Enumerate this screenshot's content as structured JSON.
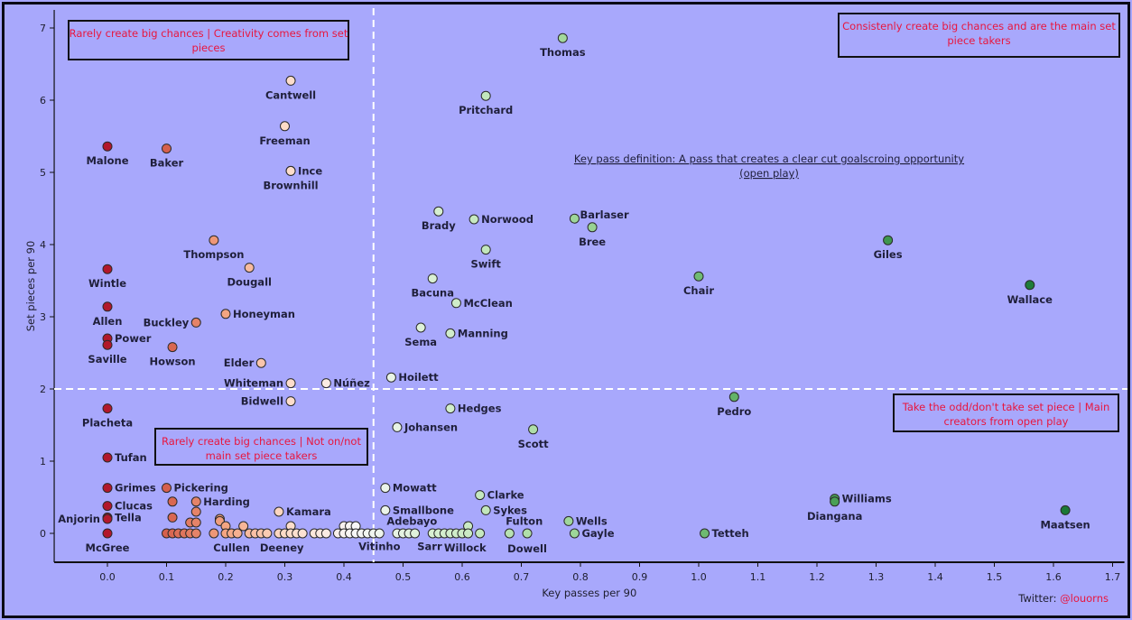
{
  "chart_data": {
    "type": "scatter",
    "title": "",
    "xlabel": "Key passes per 90",
    "ylabel": "Set pieces per 90",
    "xlim": [
      -0.09,
      1.72
    ],
    "ylim": [
      -0.4,
      7.25
    ],
    "xticks": [
      "0.0",
      "0.1",
      "0.2",
      "0.3",
      "0.4",
      "0.5",
      "0.6",
      "0.7",
      "0.8",
      "0.9",
      "1.0",
      "1.1",
      "1.2",
      "1.3",
      "1.4",
      "1.5",
      "1.6",
      "1.7"
    ],
    "yticks": [
      "0",
      "1",
      "2",
      "3",
      "4",
      "5",
      "6",
      "7"
    ],
    "grid": false,
    "reference_lines": {
      "x": 0.45,
      "y": 2.0
    },
    "color_scale": {
      "low": "#b2182b",
      "mid": "#f7f7f7",
      "high": "#1b7837",
      "variable": "Key passes per 90"
    },
    "annotations": {
      "top_left": "Rarely create big chances | Creativity comes from set pieces",
      "top_right": "Consistenly create big chances and are the main set piece takers",
      "bottom_left": "Rarely create big chances | Not on/not main set piece takers",
      "bottom_right": "Take the odd/don't take set piece | Main creators from open play",
      "definition_line1": "Key pass definition: A pass that creates a clear cut goalscroing opportunity",
      "definition_line2": "(open play)"
    },
    "credit": {
      "prefix": "Twitter: ",
      "handle": "@louorns"
    },
    "points": [
      {
        "name": "Thomas",
        "x": 0.77,
        "y": 6.86,
        "label_pos": "below"
      },
      {
        "name": "Cantwell",
        "x": 0.31,
        "y": 6.27,
        "label_pos": "below"
      },
      {
        "name": "Pritchard",
        "x": 0.64,
        "y": 6.06,
        "label_pos": "below"
      },
      {
        "name": "Freeman",
        "x": 0.3,
        "y": 5.64,
        "label_pos": "below"
      },
      {
        "name": "Malone",
        "x": 0.0,
        "y": 5.36,
        "label_pos": "below"
      },
      {
        "name": "Baker",
        "x": 0.1,
        "y": 5.33,
        "label_pos": "below"
      },
      {
        "name": "Ince",
        "x": 0.31,
        "y": 5.02,
        "label_pos": "right"
      },
      {
        "name": "Brownhill",
        "x": 0.31,
        "y": 5.02,
        "label_pos": "below"
      },
      {
        "name": "Brady",
        "x": 0.56,
        "y": 4.46,
        "label_pos": "below"
      },
      {
        "name": "Norwood",
        "x": 0.62,
        "y": 4.35,
        "label_pos": "right"
      },
      {
        "name": "Barlaser",
        "x": 0.79,
        "y": 4.36,
        "label_pos": "right-up"
      },
      {
        "name": "Bree",
        "x": 0.82,
        "y": 4.24,
        "label_pos": "below"
      },
      {
        "name": "Thompson",
        "x": 0.18,
        "y": 4.06,
        "label_pos": "below"
      },
      {
        "name": "Giles",
        "x": 1.32,
        "y": 4.06,
        "label_pos": "below"
      },
      {
        "name": "Swift",
        "x": 0.64,
        "y": 3.93,
        "label_pos": "below"
      },
      {
        "name": "Dougall",
        "x": 0.24,
        "y": 3.68,
        "label_pos": "below"
      },
      {
        "name": "Wintle",
        "x": 0.0,
        "y": 3.66,
        "label_pos": "below"
      },
      {
        "name": "Chair",
        "x": 1.0,
        "y": 3.56,
        "label_pos": "below"
      },
      {
        "name": "Bacuna",
        "x": 0.55,
        "y": 3.53,
        "label_pos": "below"
      },
      {
        "name": "Wallace",
        "x": 1.56,
        "y": 3.44,
        "label_pos": "below"
      },
      {
        "name": "McClean",
        "x": 0.59,
        "y": 3.19,
        "label_pos": "right"
      },
      {
        "name": "Allen",
        "x": 0.0,
        "y": 3.14,
        "label_pos": "below"
      },
      {
        "name": "Honeyman",
        "x": 0.2,
        "y": 3.04,
        "label_pos": "right"
      },
      {
        "name": "Buckley",
        "x": 0.15,
        "y": 2.92,
        "label_pos": "left"
      },
      {
        "name": "Sema",
        "x": 0.53,
        "y": 2.85,
        "label_pos": "below"
      },
      {
        "name": "Manning",
        "x": 0.58,
        "y": 2.77,
        "label_pos": "right"
      },
      {
        "name": "Power",
        "x": 0.0,
        "y": 2.7,
        "label_pos": "right"
      },
      {
        "name": "Saville",
        "x": 0.0,
        "y": 2.61,
        "label_pos": "below"
      },
      {
        "name": "Howson",
        "x": 0.11,
        "y": 2.58,
        "label_pos": "below"
      },
      {
        "name": "Elder",
        "x": 0.26,
        "y": 2.36,
        "label_pos": "left"
      },
      {
        "name": "Hoilett",
        "x": 0.48,
        "y": 2.16,
        "label_pos": "right"
      },
      {
        "name": "Whiteman",
        "x": 0.31,
        "y": 2.08,
        "label_pos": "left"
      },
      {
        "name": "Núñez",
        "x": 0.37,
        "y": 2.08,
        "label_pos": "right"
      },
      {
        "name": "Pedro",
        "x": 1.06,
        "y": 1.89,
        "label_pos": "below"
      },
      {
        "name": "Bidwell",
        "x": 0.31,
        "y": 1.83,
        "label_pos": "left"
      },
      {
        "name": "Hedges",
        "x": 0.58,
        "y": 1.73,
        "label_pos": "right"
      },
      {
        "name": "Placheta",
        "x": 0.0,
        "y": 1.73,
        "label_pos": "below"
      },
      {
        "name": "Johansen",
        "x": 0.49,
        "y": 1.47,
        "label_pos": "right"
      },
      {
        "name": "Scott",
        "x": 0.72,
        "y": 1.44,
        "label_pos": "below"
      },
      {
        "name": "Tufan",
        "x": 0.0,
        "y": 1.05,
        "label_pos": "right"
      },
      {
        "name": "Grimes",
        "x": 0.0,
        "y": 0.63,
        "label_pos": "right"
      },
      {
        "name": "Pickering",
        "x": 0.1,
        "y": 0.63,
        "label_pos": "right"
      },
      {
        "name": "Mowatt",
        "x": 0.47,
        "y": 0.63,
        "label_pos": "right"
      },
      {
        "name": "Clarke",
        "x": 0.63,
        "y": 0.53,
        "label_pos": "right"
      },
      {
        "name": "Williams",
        "x": 1.23,
        "y": 0.48,
        "label_pos": "right"
      },
      {
        "name": "Diangana",
        "x": 1.23,
        "y": 0.44,
        "label_pos": "below"
      },
      {
        "name": "Harding",
        "x": 0.15,
        "y": 0.44,
        "label_pos": "right"
      },
      {
        "name": "",
        "x": 0.11,
        "y": 0.44,
        "label_pos": "none"
      },
      {
        "name": "Clucas",
        "x": 0.0,
        "y": 0.38,
        "label_pos": "right"
      },
      {
        "name": "Smallbone",
        "x": 0.47,
        "y": 0.32,
        "label_pos": "right"
      },
      {
        "name": "Sykes",
        "x": 0.64,
        "y": 0.32,
        "label_pos": "right"
      },
      {
        "name": "Maatsen",
        "x": 1.62,
        "y": 0.32,
        "label_pos": "below"
      },
      {
        "name": "Kamara",
        "x": 0.29,
        "y": 0.3,
        "label_pos": "right"
      },
      {
        "name": "",
        "x": 0.15,
        "y": 0.3,
        "label_pos": "none"
      },
      {
        "name": "Tella",
        "x": 0.0,
        "y": 0.22,
        "label_pos": "right"
      },
      {
        "name": "Anjorin",
        "x": 0.0,
        "y": 0.2,
        "label_pos": "left"
      },
      {
        "name": "",
        "x": 0.11,
        "y": 0.22,
        "label_pos": "none"
      },
      {
        "name": "",
        "x": 0.19,
        "y": 0.2,
        "label_pos": "none"
      },
      {
        "name": "Wells",
        "x": 0.78,
        "y": 0.17,
        "label_pos": "right"
      },
      {
        "name": "",
        "x": 0.14,
        "y": 0.15,
        "label_pos": "none"
      },
      {
        "name": "",
        "x": 0.15,
        "y": 0.15,
        "label_pos": "none"
      },
      {
        "name": "",
        "x": 0.19,
        "y": 0.17,
        "label_pos": "none"
      },
      {
        "name": "",
        "x": 0.2,
        "y": 0.1,
        "label_pos": "none"
      },
      {
        "name": "",
        "x": 0.23,
        "y": 0.1,
        "label_pos": "none"
      },
      {
        "name": "",
        "x": 0.31,
        "y": 0.1,
        "label_pos": "none"
      },
      {
        "name": "",
        "x": 0.4,
        "y": 0.1,
        "label_pos": "none"
      },
      {
        "name": "",
        "x": 0.41,
        "y": 0.1,
        "label_pos": "none"
      },
      {
        "name": "",
        "x": 0.42,
        "y": 0.1,
        "label_pos": "none"
      },
      {
        "name": "",
        "x": 0.61,
        "y": 0.1,
        "label_pos": "none"
      },
      {
        "name": "McGree",
        "x": 0.0,
        "y": 0.0,
        "label_pos": "below"
      },
      {
        "name": "",
        "x": 0.1,
        "y": 0.0,
        "label_pos": "none"
      },
      {
        "name": "",
        "x": 0.11,
        "y": 0.0,
        "label_pos": "none"
      },
      {
        "name": "",
        "x": 0.12,
        "y": 0.0,
        "label_pos": "none"
      },
      {
        "name": "",
        "x": 0.13,
        "y": 0.0,
        "label_pos": "none"
      },
      {
        "name": "",
        "x": 0.14,
        "y": 0.0,
        "label_pos": "none"
      },
      {
        "name": "",
        "x": 0.15,
        "y": 0.0,
        "label_pos": "none"
      },
      {
        "name": "",
        "x": 0.18,
        "y": 0.0,
        "label_pos": "none"
      },
      {
        "name": "",
        "x": 0.2,
        "y": 0.0,
        "label_pos": "none"
      },
      {
        "name": "Cullen",
        "x": 0.21,
        "y": 0.0,
        "label_pos": "none"
      },
      {
        "name": "",
        "x": 0.22,
        "y": 0.0,
        "label_pos": "none"
      },
      {
        "name": "",
        "x": 0.24,
        "y": 0.0,
        "label_pos": "none"
      },
      {
        "name": "",
        "x": 0.25,
        "y": 0.0,
        "label_pos": "none"
      },
      {
        "name": "",
        "x": 0.26,
        "y": 0.0,
        "label_pos": "none"
      },
      {
        "name": "",
        "x": 0.27,
        "y": 0.0,
        "label_pos": "none"
      },
      {
        "name": "",
        "x": 0.29,
        "y": 0.0,
        "label_pos": "none"
      },
      {
        "name": "Deeney",
        "x": 0.3,
        "y": 0.0,
        "label_pos": "none"
      },
      {
        "name": "",
        "x": 0.31,
        "y": 0.0,
        "label_pos": "none"
      },
      {
        "name": "",
        "x": 0.32,
        "y": 0.0,
        "label_pos": "none"
      },
      {
        "name": "",
        "x": 0.33,
        "y": 0.0,
        "label_pos": "none"
      },
      {
        "name": "",
        "x": 0.35,
        "y": 0.0,
        "label_pos": "none"
      },
      {
        "name": "",
        "x": 0.36,
        "y": 0.0,
        "label_pos": "none"
      },
      {
        "name": "",
        "x": 0.37,
        "y": 0.0,
        "label_pos": "none"
      },
      {
        "name": "",
        "x": 0.39,
        "y": 0.0,
        "label_pos": "none"
      },
      {
        "name": "",
        "x": 0.4,
        "y": 0.0,
        "label_pos": "none"
      },
      {
        "name": "",
        "x": 0.41,
        "y": 0.0,
        "label_pos": "none"
      },
      {
        "name": "",
        "x": 0.42,
        "y": 0.0,
        "label_pos": "none"
      },
      {
        "name": "",
        "x": 0.43,
        "y": 0.0,
        "label_pos": "none"
      },
      {
        "name": "Vitinho",
        "x": 0.44,
        "y": 0.0,
        "label_pos": "none"
      },
      {
        "name": "",
        "x": 0.45,
        "y": 0.0,
        "label_pos": "none"
      },
      {
        "name": "",
        "x": 0.46,
        "y": 0.0,
        "label_pos": "none"
      },
      {
        "name": "",
        "x": 0.49,
        "y": 0.0,
        "label_pos": "none"
      },
      {
        "name": "Adebayo",
        "x": 0.5,
        "y": 0.0,
        "label_pos": "none"
      },
      {
        "name": "",
        "x": 0.51,
        "y": 0.0,
        "label_pos": "none"
      },
      {
        "name": "",
        "x": 0.52,
        "y": 0.0,
        "label_pos": "none"
      },
      {
        "name": "Sarr",
        "x": 0.55,
        "y": 0.0,
        "label_pos": "none"
      },
      {
        "name": "",
        "x": 0.56,
        "y": 0.0,
        "label_pos": "none"
      },
      {
        "name": "",
        "x": 0.57,
        "y": 0.0,
        "label_pos": "none"
      },
      {
        "name": "",
        "x": 0.58,
        "y": 0.0,
        "label_pos": "none"
      },
      {
        "name": "",
        "x": 0.59,
        "y": 0.0,
        "label_pos": "none"
      },
      {
        "name": "Willock",
        "x": 0.6,
        "y": 0.0,
        "label_pos": "none"
      },
      {
        "name": "",
        "x": 0.61,
        "y": 0.0,
        "label_pos": "none"
      },
      {
        "name": "",
        "x": 0.63,
        "y": 0.0,
        "label_pos": "none"
      },
      {
        "name": "Fulton",
        "x": 0.68,
        "y": 0.0,
        "label_pos": "none"
      },
      {
        "name": "Dowell",
        "x": 0.71,
        "y": 0.0,
        "label_pos": "none"
      },
      {
        "name": "Gayle",
        "x": 0.79,
        "y": 0.0,
        "label_pos": "right"
      },
      {
        "name": "Tetteh",
        "x": 1.01,
        "y": 0.0,
        "label_pos": "right"
      }
    ],
    "free_labels": [
      {
        "text": "Cullen",
        "x": 0.21,
        "y": -0.2
      },
      {
        "text": "Deeney",
        "x": 0.295,
        "y": -0.2
      },
      {
        "text": "Vitinho",
        "x": 0.46,
        "y": -0.18
      },
      {
        "text": "Adebayo",
        "x": 0.515,
        "y": 0.17
      },
      {
        "text": "Sarr",
        "x": 0.545,
        "y": -0.18
      },
      {
        "text": "Willock",
        "x": 0.605,
        "y": -0.2
      },
      {
        "text": "Fulton",
        "x": 0.705,
        "y": 0.17
      },
      {
        "text": "Dowell",
        "x": 0.71,
        "y": -0.21
      }
    ]
  }
}
